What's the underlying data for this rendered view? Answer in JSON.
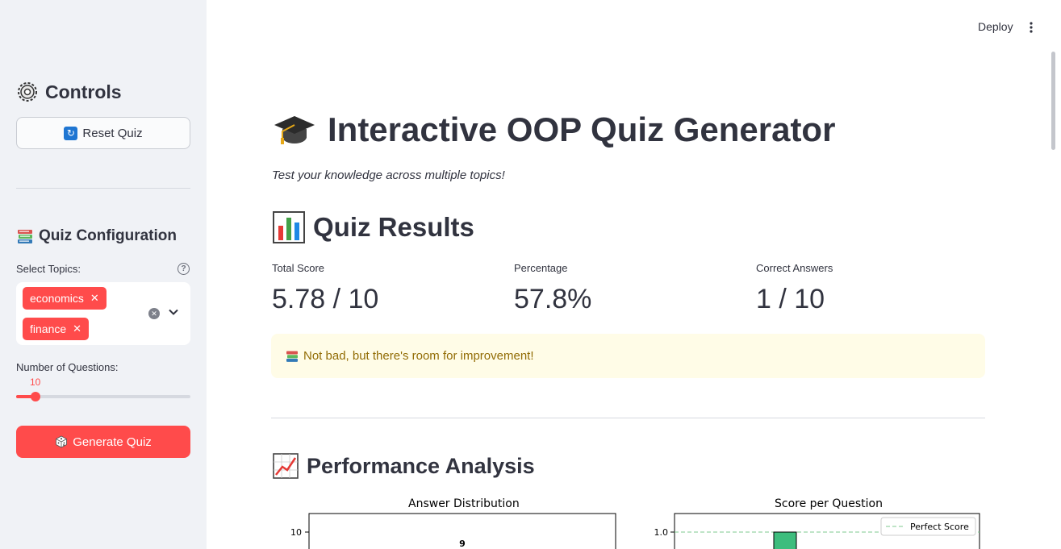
{
  "header": {
    "deploy_label": "Deploy",
    "menu_icon": "kebab-menu-icon"
  },
  "sidebar": {
    "controls_title": "Controls",
    "reset_button": "Reset Quiz",
    "config_title": "Quiz Configuration",
    "topics_label": "Select Topics:",
    "topics": [
      "economics",
      "finance"
    ],
    "questions_label": "Number of Questions:",
    "questions_value": "10",
    "slider_fraction": 0.1,
    "generate_button": "Generate Quiz"
  },
  "main": {
    "title": "Interactive OOP Quiz Generator",
    "subtitle": "Test your knowledge across multiple topics!",
    "results_title": "Quiz Results",
    "metrics": [
      {
        "label": "Total Score",
        "value": "5.78 / 10"
      },
      {
        "label": "Percentage",
        "value": "57.8%"
      },
      {
        "label": "Correct Answers",
        "value": "1 / 10"
      }
    ],
    "alert_text": "Not bad, but there's room for improvement!",
    "performance_title": "Performance Analysis"
  },
  "chart_data": [
    {
      "type": "bar",
      "title": "Answer Distribution",
      "ytick_visible": "10",
      "bar_label_visible": "9"
    },
    {
      "type": "bar",
      "title": "Score per Question",
      "ytick_visible": "1.0",
      "legend": [
        "Perfect Score"
      ],
      "reference_line": 1.0,
      "bar_color": "#3dbd7d"
    }
  ],
  "colors": {
    "accent": "#ff4b4b",
    "sidebar_bg": "#f0f2f6",
    "alert_bg": "#fffce7",
    "alert_text": "#926c05"
  }
}
